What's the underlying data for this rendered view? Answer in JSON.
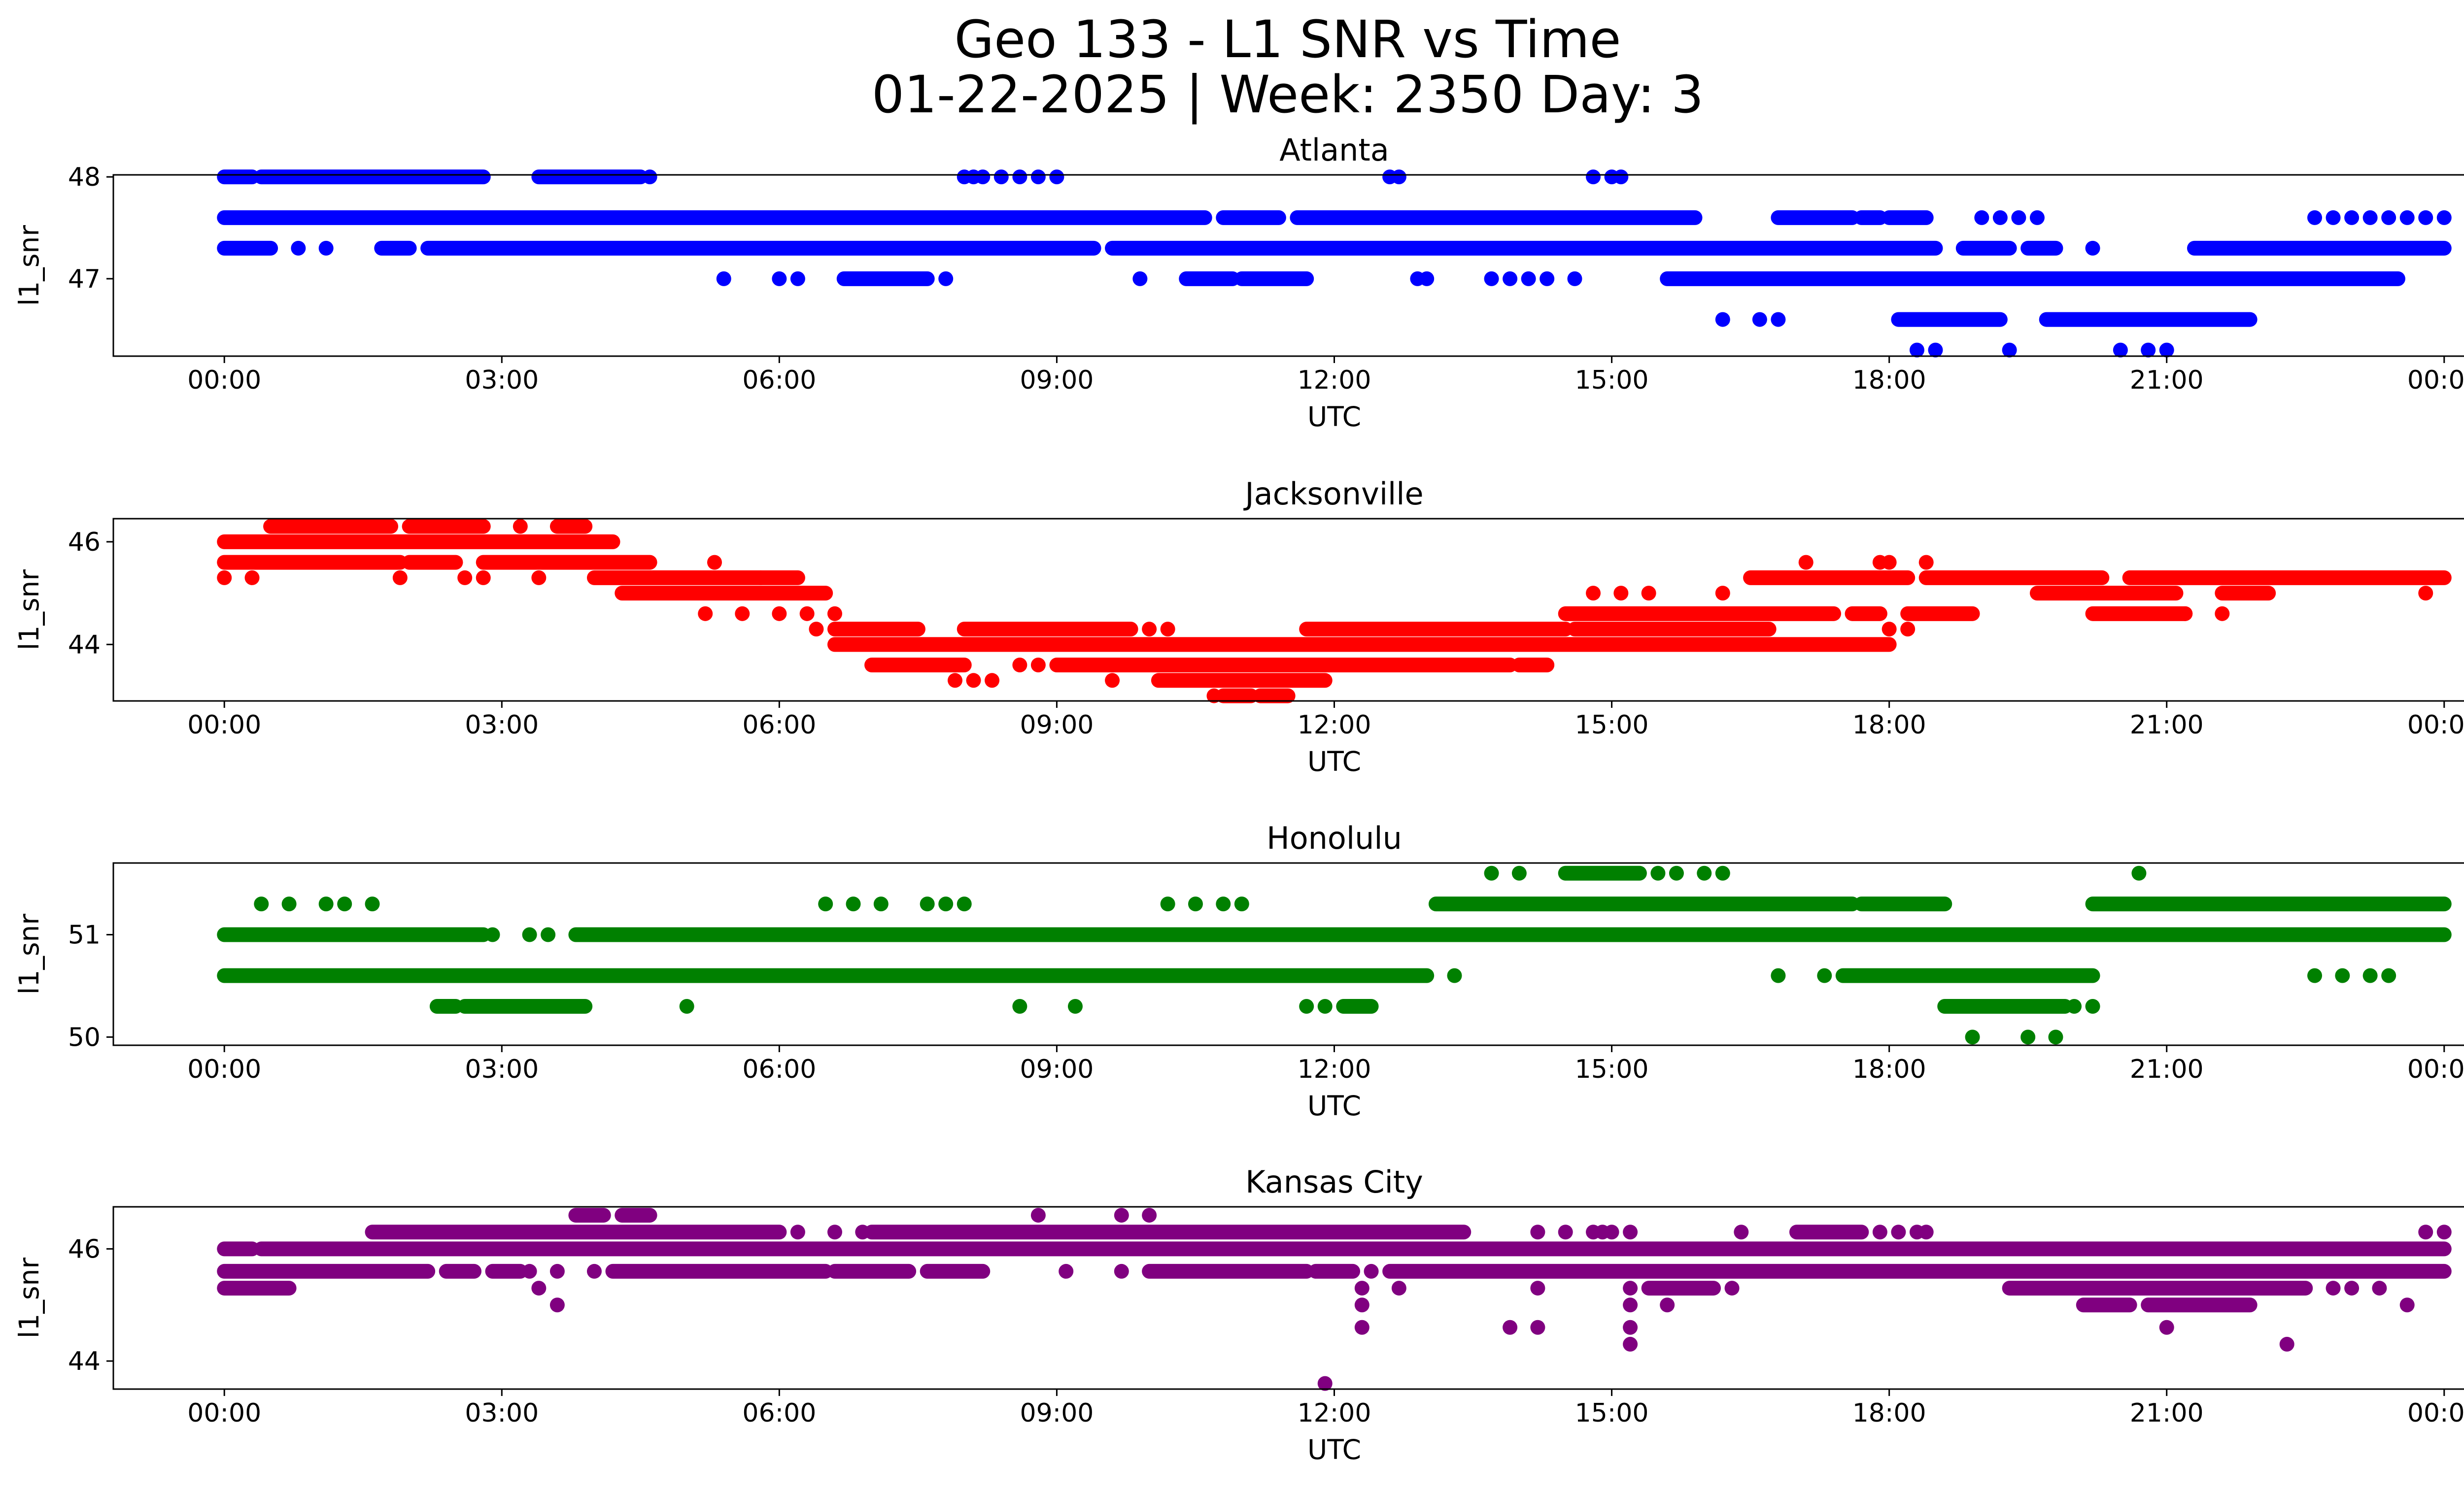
{
  "figure": {
    "title_line1": "Geo 133 - L1 SNR vs Time",
    "title_line2": "01-22-2025 | Week: 2350 Day: 3"
  },
  "chart_data": [
    {
      "type": "scatter",
      "title": "Atlanta",
      "xlabel": "UTC",
      "ylabel": "l1_snr",
      "color": "#0000ff",
      "xlim_hours": [
        -1.2,
        25.2
      ],
      "ylim": [
        46.24,
        48.02
      ],
      "xticks": [
        "00:00",
        "03:00",
        "06:00",
        "09:00",
        "12:00",
        "15:00",
        "18:00",
        "21:00",
        "00:00"
      ],
      "yticks": [
        47,
        48
      ],
      "levels": [
        {
          "y": 48.0,
          "spans": [
            [
              0.0,
              0.3
            ],
            [
              0.4,
              2.8
            ],
            [
              3.4,
              4.5
            ]
          ],
          "points": [
            4.6,
            8.0,
            8.1,
            8.2,
            8.4,
            8.6,
            8.8,
            9.0,
            12.6,
            12.7,
            14.8,
            15.0,
            15.1
          ]
        },
        {
          "y": 47.6,
          "spans": [
            [
              0.0,
              10.6
            ],
            [
              10.8,
              11.4
            ],
            [
              11.6,
              15.9
            ],
            [
              16.8,
              17.6
            ],
            [
              17.7,
              17.9
            ],
            [
              18.0,
              18.4
            ]
          ],
          "points": [
            19.0,
            19.2,
            19.4,
            19.6,
            22.6,
            22.8,
            23.0,
            23.2,
            23.4,
            23.6,
            23.8,
            24.0
          ]
        },
        {
          "y": 47.3,
          "spans": [
            [
              0.0,
              0.5
            ],
            [
              1.7,
              2.0
            ],
            [
              2.2,
              9.4
            ],
            [
              9.6,
              18.5
            ],
            [
              18.8,
              19.3
            ],
            [
              19.5,
              19.8
            ],
            [
              21.3,
              24.0
            ]
          ],
          "points": [
            0.8,
            1.1,
            20.2
          ]
        },
        {
          "y": 47.0,
          "spans": [
            [
              6.7,
              7.6
            ],
            [
              10.4,
              10.9
            ],
            [
              11.0,
              11.7
            ],
            [
              15.6,
              23.5
            ]
          ],
          "points": [
            5.4,
            6.0,
            6.2,
            7.8,
            9.9,
            12.9,
            13.0,
            13.7,
            13.9,
            14.1,
            14.3,
            14.6
          ]
        },
        {
          "y": 46.6,
          "spans": [
            [
              18.1,
              19.2
            ],
            [
              19.7,
              21.9
            ]
          ],
          "points": [
            16.2,
            16.6,
            16.8
          ]
        },
        {
          "y": 46.3,
          "spans": [],
          "points": [
            18.3,
            18.5,
            19.3,
            20.5,
            20.8,
            21.0
          ]
        }
      ]
    },
    {
      "type": "scatter",
      "title": "Jacksonville",
      "xlabel": "UTC",
      "ylabel": "l1_snr",
      "color": "#ff0000",
      "xlim_hours": [
        -1.2,
        25.2
      ],
      "ylim": [
        42.9,
        46.45
      ],
      "xticks": [
        "00:00",
        "03:00",
        "06:00",
        "09:00",
        "12:00",
        "15:00",
        "18:00",
        "21:00",
        "00:00"
      ],
      "yticks": [
        44,
        46
      ],
      "levels": [
        {
          "y": 46.3,
          "spans": [
            [
              0.5,
              1.8
            ],
            [
              2.0,
              2.8
            ],
            [
              3.6,
              3.9
            ]
          ],
          "points": [
            3.2
          ]
        },
        {
          "y": 46.0,
          "spans": [
            [
              0.0,
              4.2
            ]
          ],
          "points": []
        },
        {
          "y": 45.6,
          "spans": [
            [
              0.0,
              1.9
            ],
            [
              2.0,
              2.5
            ],
            [
              2.8,
              4.6
            ]
          ],
          "points": [
            5.3,
            17.1,
            17.9,
            18.0,
            18.4
          ]
        },
        {
          "y": 45.3,
          "spans": [
            [
              4.0,
              6.2
            ],
            [
              16.5,
              18.2
            ],
            [
              18.4,
              20.3
            ],
            [
              20.6,
              24.0
            ]
          ],
          "points": [
            0.0,
            0.3,
            1.9,
            2.6,
            2.8,
            3.4,
            5.8
          ]
        },
        {
          "y": 45.0,
          "spans": [
            [
              4.3,
              6.5
            ],
            [
              19.6,
              21.1
            ],
            [
              21.6,
              22.1
            ]
          ],
          "points": [
            14.8,
            15.1,
            15.4,
            16.2,
            23.8
          ]
        },
        {
          "y": 44.6,
          "spans": [
            [
              14.5,
              17.4
            ],
            [
              17.6,
              17.9
            ],
            [
              18.2,
              18.9
            ],
            [
              20.2,
              21.2
            ]
          ],
          "points": [
            5.2,
            5.6,
            6.0,
            6.3,
            6.6,
            21.2,
            21.6
          ]
        },
        {
          "y": 44.3,
          "spans": [
            [
              6.6,
              7.5
            ],
            [
              8.0,
              9.8
            ],
            [
              11.7,
              14.5
            ],
            [
              14.6,
              16.7
            ]
          ],
          "points": [
            6.4,
            10.0,
            10.2,
            18.0,
            18.2
          ]
        },
        {
          "y": 44.0,
          "spans": [
            [
              6.6,
              18.0
            ]
          ],
          "points": []
        },
        {
          "y": 43.6,
          "spans": [
            [
              7.0,
              8.0
            ],
            [
              9.0,
              13.9
            ],
            [
              14.0,
              14.3
            ]
          ],
          "points": [
            8.6,
            8.8,
            9.6,
            9.8
          ]
        },
        {
          "y": 43.3,
          "spans": [
            [
              10.1,
              11.9
            ]
          ],
          "points": [
            7.9,
            8.1,
            8.3,
            9.6
          ]
        },
        {
          "y": 43.0,
          "spans": [
            [
              10.8,
              11.1
            ],
            [
              11.2,
              11.5
            ]
          ],
          "points": [
            10.7
          ]
        }
      ]
    },
    {
      "type": "scatter",
      "title": "Honolulu",
      "xlabel": "UTC",
      "ylabel": "l1_snr",
      "color": "#008000",
      "xlim_hours": [
        -1.2,
        25.2
      ],
      "ylim": [
        49.92,
        51.7
      ],
      "xticks": [
        "00:00",
        "03:00",
        "06:00",
        "09:00",
        "12:00",
        "15:00",
        "18:00",
        "21:00",
        "00:00"
      ],
      "yticks": [
        50,
        51
      ],
      "levels": [
        {
          "y": 51.6,
          "spans": [
            [
              14.5,
              15.3
            ]
          ],
          "points": [
            13.7,
            14.0,
            15.5,
            15.7,
            16.0,
            16.2,
            20.7
          ]
        },
        {
          "y": 51.3,
          "spans": [
            [
              13.1,
              17.6
            ],
            [
              17.7,
              18.6
            ],
            [
              20.2,
              24.0
            ]
          ],
          "points": [
            0.4,
            0.7,
            1.1,
            1.3,
            1.6,
            6.5,
            6.8,
            7.1,
            7.6,
            7.8,
            8.0,
            10.2,
            10.5,
            10.8,
            11.0
          ]
        },
        {
          "y": 51.0,
          "spans": [
            [
              0.0,
              2.8
            ],
            [
              3.8,
              24.0
            ]
          ],
          "points": [
            2.9,
            3.3,
            3.5
          ]
        },
        {
          "y": 50.6,
          "spans": [
            [
              0.0,
              13.0
            ],
            [
              17.5,
              20.2
            ]
          ],
          "points": [
            13.3,
            16.8,
            17.3,
            22.6,
            22.9,
            23.2,
            23.4
          ]
        },
        {
          "y": 50.3,
          "spans": [
            [
              2.3,
              2.5
            ],
            [
              2.6,
              3.9
            ],
            [
              18.6,
              19.9
            ],
            [
              12.1,
              12.4
            ]
          ],
          "points": [
            5.0,
            8.6,
            9.2,
            11.7,
            11.9,
            20.0,
            20.2
          ]
        },
        {
          "y": 50.0,
          "spans": [],
          "points": [
            18.9,
            19.5,
            19.8
          ]
        }
      ]
    },
    {
      "type": "scatter",
      "title": "Kansas City",
      "xlabel": "UTC",
      "ylabel": "l1_snr",
      "color": "#800080",
      "xlim_hours": [
        -1.2,
        25.2
      ],
      "ylim": [
        43.5,
        46.75
      ],
      "xticks": [
        "00:00",
        "03:00",
        "06:00",
        "09:00",
        "12:00",
        "15:00",
        "18:00",
        "21:00",
        "00:00"
      ],
      "yticks": [
        44,
        46
      ],
      "levels": [
        {
          "y": 46.6,
          "spans": [
            [
              3.8,
              4.1
            ],
            [
              4.3,
              4.6
            ]
          ],
          "points": [
            8.8,
            9.7,
            10.0
          ]
        },
        {
          "y": 46.3,
          "spans": [
            [
              1.6,
              6.0
            ],
            [
              7.0,
              13.4
            ],
            [
              17.0,
              17.7
            ]
          ],
          "points": [
            6.2,
            6.6,
            6.9,
            14.2,
            14.5,
            14.8,
            14.9,
            15.0,
            15.2,
            16.4,
            17.9,
            18.1,
            18.3,
            18.4,
            23.8,
            24.0
          ]
        },
        {
          "y": 46.0,
          "spans": [
            [
              0.0,
              0.3
            ],
            [
              0.4,
              24.0
            ]
          ],
          "points": []
        },
        {
          "y": 45.6,
          "spans": [
            [
              0.0,
              2.2
            ],
            [
              2.4,
              2.7
            ],
            [
              2.9,
              3.2
            ],
            [
              4.2,
              6.5
            ],
            [
              6.6,
              7.4
            ],
            [
              7.6,
              8.2
            ],
            [
              10.0,
              11.7
            ],
            [
              11.8,
              12.2
            ],
            [
              12.6,
              24.0
            ]
          ],
          "points": [
            3.3,
            3.6,
            4.0,
            9.1,
            9.7,
            12.4
          ]
        },
        {
          "y": 45.3,
          "spans": [
            [
              0.0,
              0.7
            ],
            [
              15.4,
              16.1
            ],
            [
              19.3,
              22.5
            ]
          ],
          "points": [
            3.4,
            12.3,
            12.7,
            14.2,
            15.2,
            16.3,
            22.8,
            23.0,
            23.3
          ]
        },
        {
          "y": 45.0,
          "spans": [
            [
              20.1,
              20.6
            ],
            [
              20.8,
              21.9
            ]
          ],
          "points": [
            3.6,
            12.3,
            15.2,
            15.6,
            23.6
          ]
        },
        {
          "y": 44.6,
          "spans": [],
          "points": [
            12.3,
            13.9,
            14.2,
            15.2,
            21.0
          ]
        },
        {
          "y": 44.3,
          "spans": [],
          "points": [
            15.2,
            22.3
          ]
        },
        {
          "y": 43.6,
          "spans": [],
          "points": [
            11.9
          ]
        }
      ]
    }
  ]
}
